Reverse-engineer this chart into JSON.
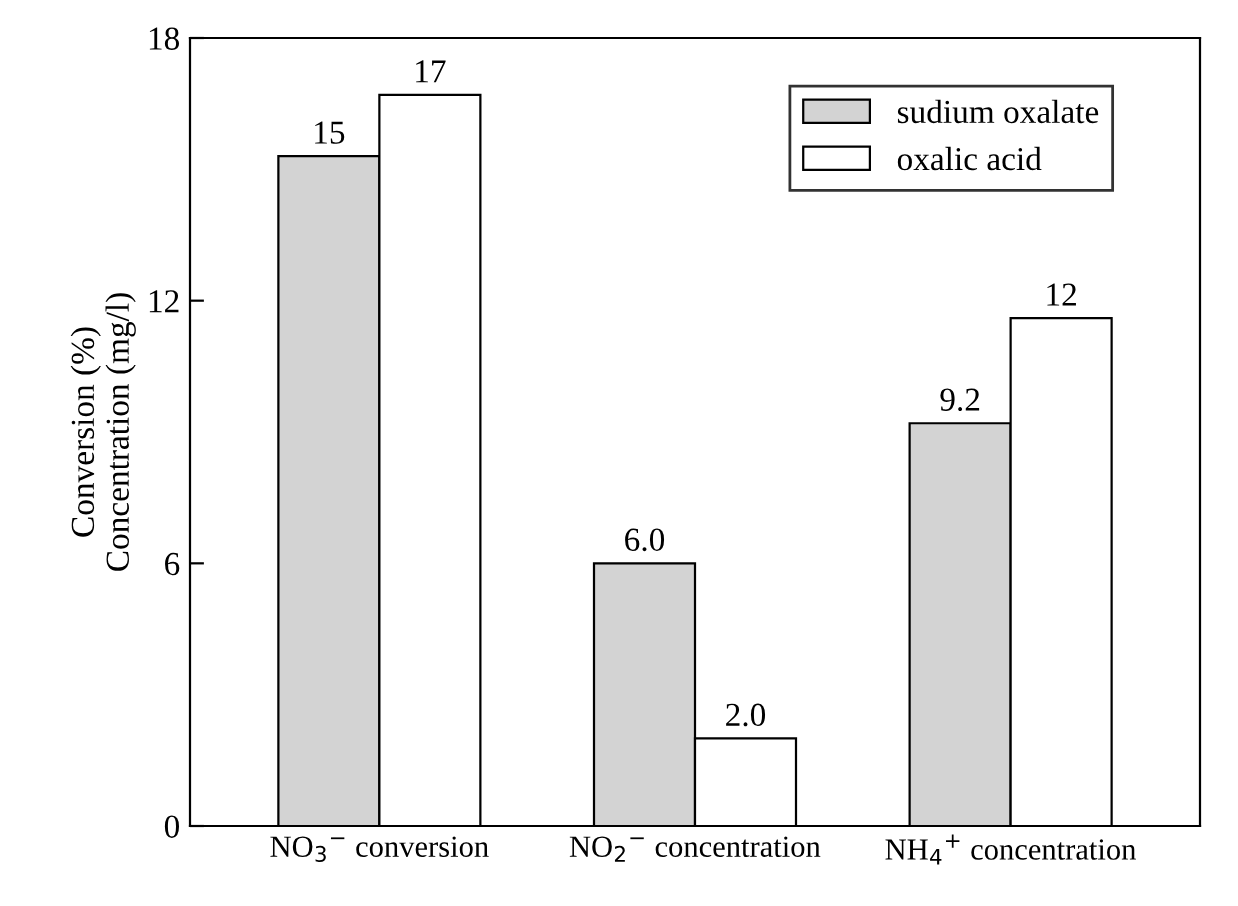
{
  "chart_data": {
    "type": "bar",
    "categories": [
      "NO$_{3}$$^{−}$ conversion",
      "NO$_{2}$$^{−}$ concentration",
      "NH$_{4}$$^{+}$ concentration"
    ],
    "series": [
      {
        "name": "sudium oxalate",
        "color": "#d3d3d3",
        "values": [
          15.3,
          6.0,
          9.2
        ],
        "value_labels": [
          "15",
          "6.0",
          "9.2"
        ]
      },
      {
        "name": "oxalic acid",
        "color": "#ffffff",
        "values": [
          16.7,
          2.0,
          11.6
        ],
        "value_labels": [
          "17",
          "2.0",
          "12"
        ]
      }
    ],
    "ylabel": "Conversion (%)\nConcentration (mg/l)",
    "ylim": [
      0,
      18
    ],
    "yticks": [
      0,
      6,
      12,
      18
    ],
    "legend": "top right",
    "grid": false
  }
}
